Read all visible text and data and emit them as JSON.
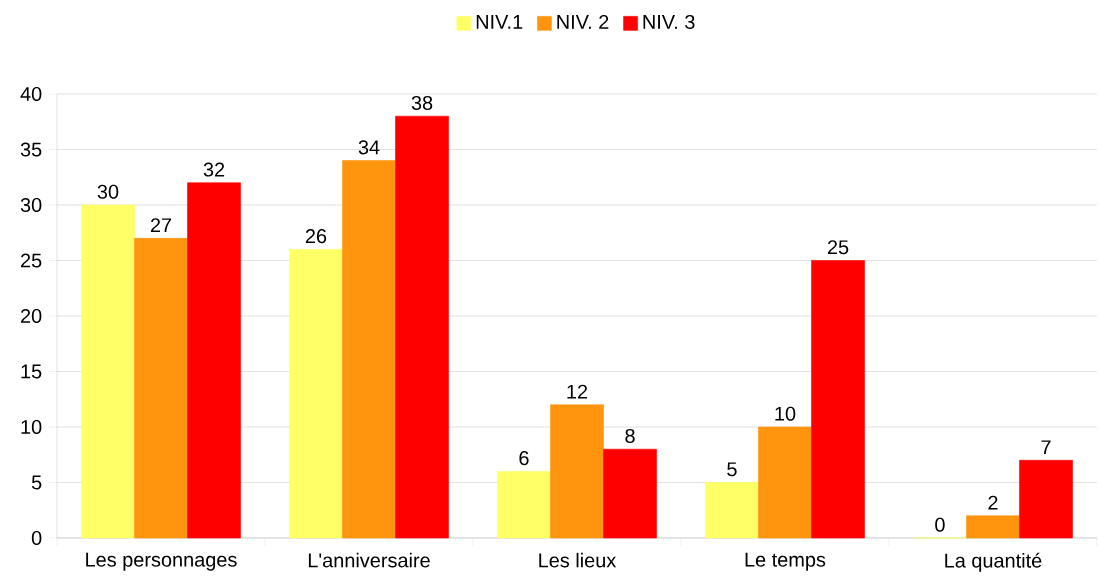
{
  "chart_data": {
    "type": "bar",
    "categories": [
      "Les personnages",
      "L'anniversaire",
      "Les lieux",
      "Le temps",
      "La quantité"
    ],
    "series": [
      {
        "name": "NIV.1",
        "color": "#ffff66",
        "values": [
          30,
          26,
          6,
          5,
          0
        ]
      },
      {
        "name": "NIV. 2",
        "color": "#ff950e",
        "values": [
          27,
          34,
          12,
          10,
          2
        ]
      },
      {
        "name": "NIV. 3",
        "color": "#ff0000",
        "values": [
          32,
          38,
          8,
          25,
          7
        ]
      }
    ],
    "ylim": [
      0,
      40
    ],
    "yticks": [
      0,
      5,
      10,
      15,
      20,
      25,
      30,
      35,
      40
    ],
    "grid": "y",
    "legend": "top",
    "data_labels": true
  }
}
